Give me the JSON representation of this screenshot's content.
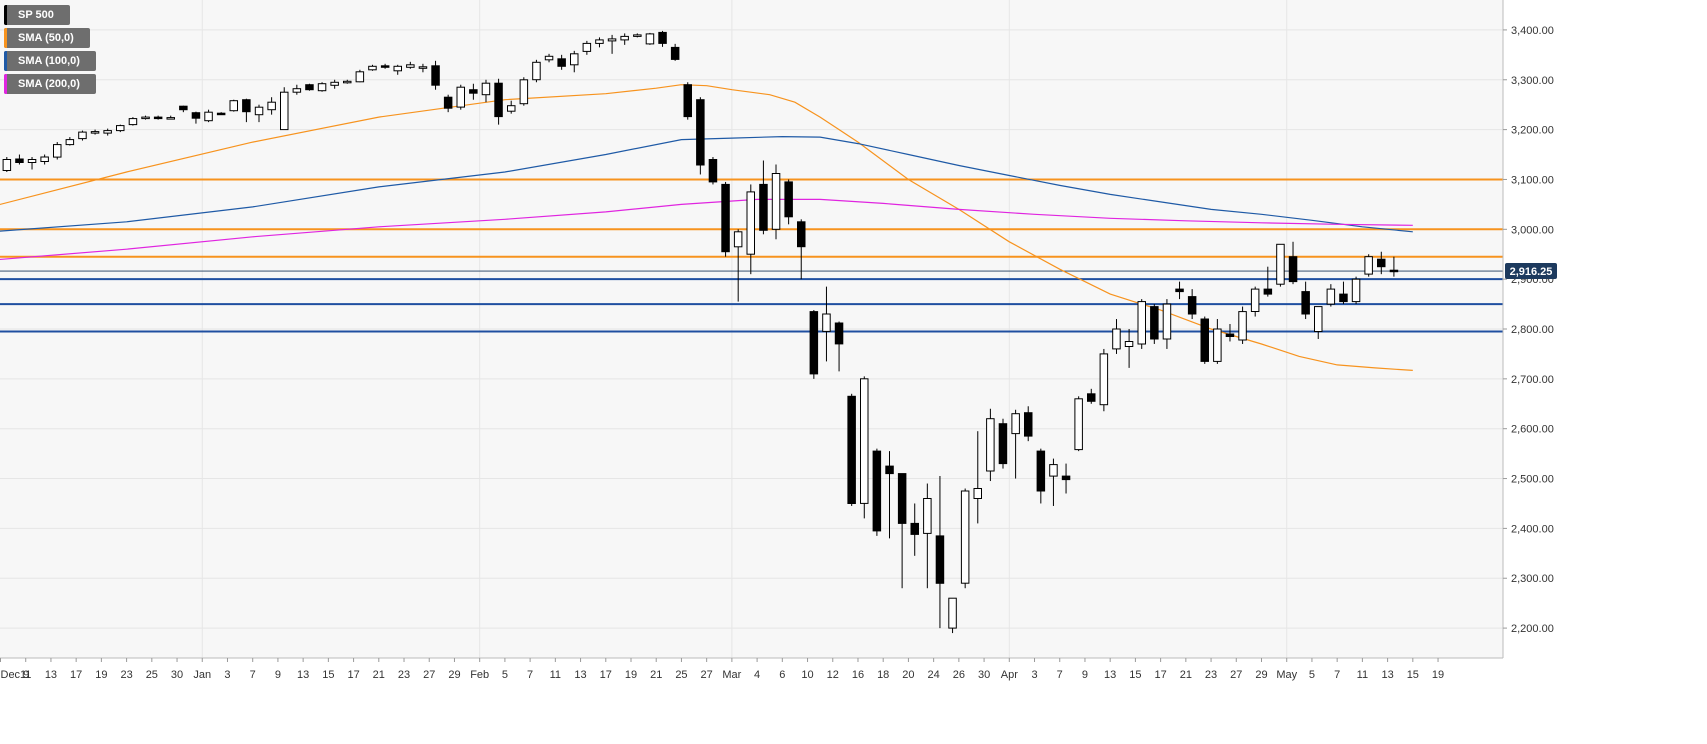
{
  "legend": [
    {
      "label": "SP 500",
      "color": "#000000"
    },
    {
      "label": "SMA (50,0)",
      "color": "#f7931e"
    },
    {
      "label": "SMA (100,0)",
      "color": "#1f5aa6"
    },
    {
      "label": "SMA (200,0)",
      "color": "#e025e0"
    }
  ],
  "colors": {
    "background": "#f7f7f7",
    "grid": "#e6e6e6",
    "bull_fill": "#ffffff",
    "bear_fill": "#000000",
    "candle_outline": "#000000",
    "resistance": "#f7931e",
    "support": "#1f4fa0",
    "sma50": "#f7931e",
    "sma100": "#1f5aa6",
    "sma200": "#e025e0",
    "price_tag": "#1d3a5e"
  },
  "chart_data": {
    "type": "candlestick",
    "title": "",
    "xlabel": "",
    "ylabel": "",
    "ylim": [
      2140,
      3460
    ],
    "grid": true,
    "legend_placement": "top-left",
    "y_ticks": [
      2200,
      2300,
      2400,
      2500,
      2600,
      2700,
      2800,
      2900,
      3000,
      3100,
      3200,
      3300,
      3400
    ],
    "y_tick_labels": [
      "2,200.00",
      "2,300.00",
      "2,400.00",
      "2,500.00",
      "2,600.00",
      "2,700.00",
      "2,800.00",
      "2,900.00",
      "3,000.00",
      "3,100.00",
      "3,200.00",
      "3,300.00",
      "3,400.00"
    ],
    "x_tick_labels": [
      "Dec 9",
      "11",
      "13",
      "17",
      "19",
      "23",
      "25",
      "30",
      "Jan",
      "3",
      "7",
      "9",
      "13",
      "15",
      "17",
      "21",
      "23",
      "27",
      "29",
      "Feb",
      "5",
      "7",
      "11",
      "13",
      "17",
      "19",
      "21",
      "25",
      "27",
      "Mar",
      "4",
      "6",
      "10",
      "12",
      "16",
      "18",
      "20",
      "24",
      "26",
      "30",
      "Apr",
      "3",
      "7",
      "9",
      "13",
      "15",
      "17",
      "21",
      "23",
      "27",
      "29",
      "May",
      "5",
      "7",
      "11",
      "13",
      "15",
      "19"
    ],
    "x_tick_slots": [
      0,
      2,
      4,
      6,
      8,
      10,
      12,
      14,
      16,
      18,
      20,
      22,
      24,
      26,
      28,
      30,
      32,
      34,
      36,
      38,
      40,
      42,
      44,
      46,
      48,
      50,
      52,
      54,
      56,
      58,
      60,
      62,
      64,
      66,
      68,
      70,
      72,
      74,
      76,
      78,
      80,
      82,
      84,
      86,
      88,
      90,
      92,
      94,
      96,
      98,
      100,
      102,
      104,
      106,
      108,
      110,
      112,
      114
    ],
    "vertical_grid_labels": [
      "Jan",
      "Feb",
      "Mar",
      "Apr",
      "May"
    ],
    "horizontal_levels": [
      {
        "value": 3100,
        "kind": "resistance"
      },
      {
        "value": 3000,
        "kind": "resistance"
      },
      {
        "value": 2945,
        "kind": "resistance"
      },
      {
        "value": 2900,
        "kind": "support"
      },
      {
        "value": 2850,
        "kind": "support"
      },
      {
        "value": 2795,
        "kind": "support"
      }
    ],
    "last_price": 2916.25,
    "last_price_label": "2,916.25",
    "candles": [
      {
        "x": -0.5,
        "o": 3112,
        "h": 3125,
        "l": 3100,
        "c": 3118
      },
      {
        "x": 0.5,
        "o": 3118,
        "h": 3145,
        "l": 3115,
        "c": 3140
      },
      {
        "x": 1.5,
        "o": 3141,
        "h": 3150,
        "l": 3130,
        "c": 3134
      },
      {
        "x": 2.5,
        "o": 3134,
        "h": 3145,
        "l": 3120,
        "c": 3140
      },
      {
        "x": 3.5,
        "o": 3136,
        "h": 3150,
        "l": 3130,
        "c": 3145
      },
      {
        "x": 4.5,
        "o": 3145,
        "h": 3175,
        "l": 3140,
        "c": 3170
      },
      {
        "x": 5.5,
        "o": 3170,
        "h": 3185,
        "l": 3168,
        "c": 3180
      },
      {
        "x": 6.5,
        "o": 3182,
        "h": 3198,
        "l": 3178,
        "c": 3195
      },
      {
        "x": 7.5,
        "o": 3195,
        "h": 3200,
        "l": 3190,
        "c": 3196
      },
      {
        "x": 8.5,
        "o": 3193,
        "h": 3202,
        "l": 3188,
        "c": 3198
      },
      {
        "x": 9.5,
        "o": 3198,
        "h": 3210,
        "l": 3195,
        "c": 3208
      },
      {
        "x": 10.5,
        "o": 3210,
        "h": 3225,
        "l": 3208,
        "c": 3222
      },
      {
        "x": 11.5,
        "o": 3223,
        "h": 3228,
        "l": 3220,
        "c": 3225
      },
      {
        "x": 12.5,
        "o": 3225,
        "h": 3228,
        "l": 3220,
        "c": 3223
      },
      {
        "x": 13.5,
        "o": 3222,
        "h": 3228,
        "l": 3221,
        "c": 3224
      },
      {
        "x": 14.5,
        "o": 3247,
        "h": 3248,
        "l": 3235,
        "c": 3240
      },
      {
        "x": 15.5,
        "o": 3234,
        "h": 3236,
        "l": 3212,
        "c": 3223
      },
      {
        "x": 16.5,
        "o": 3218,
        "h": 3240,
        "l": 3215,
        "c": 3235
      },
      {
        "x": 17.5,
        "o": 3233,
        "h": 3235,
        "l": 3230,
        "c": 3232
      },
      {
        "x": 18.5,
        "o": 3238,
        "h": 3260,
        "l": 3236,
        "c": 3258
      },
      {
        "x": 19.5,
        "o": 3260,
        "h": 3262,
        "l": 3215,
        "c": 3236
      },
      {
        "x": 20.5,
        "o": 3230,
        "h": 3250,
        "l": 3215,
        "c": 3245
      },
      {
        "x": 21.5,
        "o": 3240,
        "h": 3265,
        "l": 3230,
        "c": 3255
      },
      {
        "x": 22.5,
        "o": 3200,
        "h": 3285,
        "l": 3200,
        "c": 3275
      },
      {
        "x": 23.5,
        "o": 3275,
        "h": 3290,
        "l": 3270,
        "c": 3282
      },
      {
        "x": 24.5,
        "o": 3290,
        "h": 3292,
        "l": 3278,
        "c": 3280
      },
      {
        "x": 25.5,
        "o": 3278,
        "h": 3295,
        "l": 3276,
        "c": 3292
      },
      {
        "x": 26.5,
        "o": 3289,
        "h": 3300,
        "l": 3282,
        "c": 3295
      },
      {
        "x": 27.5,
        "o": 3296,
        "h": 3300,
        "l": 3292,
        "c": 3297
      },
      {
        "x": 28.5,
        "o": 3296,
        "h": 3320,
        "l": 3295,
        "c": 3316
      },
      {
        "x": 29.5,
        "o": 3320,
        "h": 3330,
        "l": 3318,
        "c": 3327
      },
      {
        "x": 30.5,
        "o": 3328,
        "h": 3332,
        "l": 3322,
        "c": 3326
      },
      {
        "x": 31.5,
        "o": 3318,
        "h": 3330,
        "l": 3310,
        "c": 3327
      },
      {
        "x": 32.5,
        "o": 3325,
        "h": 3336,
        "l": 3322,
        "c": 3330
      },
      {
        "x": 33.5,
        "o": 3325,
        "h": 3332,
        "l": 3315,
        "c": 3326
      },
      {
        "x": 34.5,
        "o": 3328,
        "h": 3338,
        "l": 3280,
        "c": 3289
      },
      {
        "x": 35.5,
        "o": 3265,
        "h": 3270,
        "l": 3235,
        "c": 3243
      },
      {
        "x": 36.5,
        "o": 3245,
        "h": 3290,
        "l": 3240,
        "c": 3285
      },
      {
        "x": 37.5,
        "o": 3280,
        "h": 3292,
        "l": 3260,
        "c": 3273
      },
      {
        "x": 38.5,
        "o": 3270,
        "h": 3300,
        "l": 3255,
        "c": 3293
      },
      {
        "x": 39.5,
        "o": 3293,
        "h": 3302,
        "l": 3210,
        "c": 3226
      },
      {
        "x": 40.5,
        "o": 3237,
        "h": 3258,
        "l": 3232,
        "c": 3248
      },
      {
        "x": 41.5,
        "o": 3252,
        "h": 3305,
        "l": 3248,
        "c": 3300
      },
      {
        "x": 42.5,
        "o": 3300,
        "h": 3340,
        "l": 3295,
        "c": 3335
      },
      {
        "x": 43.5,
        "o": 3340,
        "h": 3352,
        "l": 3335,
        "c": 3347
      },
      {
        "x": 44.5,
        "o": 3342,
        "h": 3350,
        "l": 3320,
        "c": 3327
      },
      {
        "x": 45.5,
        "o": 3330,
        "h": 3358,
        "l": 3315,
        "c": 3352
      },
      {
        "x": 46.5,
        "o": 3357,
        "h": 3378,
        "l": 3350,
        "c": 3373
      },
      {
        "x": 47.5,
        "o": 3373,
        "h": 3385,
        "l": 3365,
        "c": 3380
      },
      {
        "x": 48.5,
        "o": 3378,
        "h": 3390,
        "l": 3352,
        "c": 3382
      },
      {
        "x": 49.5,
        "o": 3380,
        "h": 3393,
        "l": 3370,
        "c": 3387
      },
      {
        "x": 50.5,
        "o": 3388,
        "h": 3393,
        "l": 3385,
        "c": 3390
      },
      {
        "x": 51.5,
        "o": 3372,
        "h": 3394,
        "l": 3370,
        "c": 3392
      },
      {
        "x": 52.5,
        "o": 3395,
        "h": 3398,
        "l": 3366,
        "c": 3373
      },
      {
        "x": 53.5,
        "o": 3365,
        "h": 3372,
        "l": 3338,
        "c": 3341
      },
      {
        "x": 54.5,
        "o": 3290,
        "h": 3295,
        "l": 3220,
        "c": 3226
      },
      {
        "x": 55.5,
        "o": 3260,
        "h": 3265,
        "l": 3110,
        "c": 3129
      },
      {
        "x": 56.5,
        "o": 3140,
        "h": 3145,
        "l": 3090,
        "c": 3095
      },
      {
        "x": 57.5,
        "o": 3090,
        "h": 3095,
        "l": 2945,
        "c": 2955
      },
      {
        "x": 58.5,
        "o": 2965,
        "h": 3000,
        "l": 2855,
        "c": 2995
      },
      {
        "x": 59.5,
        "o": 2950,
        "h": 3090,
        "l": 2910,
        "c": 3075
      },
      {
        "x": 60.5,
        "o": 3090,
        "h": 3138,
        "l": 2990,
        "c": 2998
      },
      {
        "x": 61.5,
        "o": 3000,
        "h": 3130,
        "l": 2980,
        "c": 3112
      },
      {
        "x": 62.5,
        "o": 3095,
        "h": 3100,
        "l": 3010,
        "c": 3025
      },
      {
        "x": 63.5,
        "o": 3015,
        "h": 3020,
        "l": 2900,
        "c": 2965
      },
      {
        "x": 64.5,
        "o": 2835,
        "h": 2838,
        "l": 2700,
        "c": 2710
      },
      {
        "x": 65.5,
        "o": 2795,
        "h": 2885,
        "l": 2735,
        "c": 2830
      },
      {
        "x": 66.5,
        "o": 2812,
        "h": 2815,
        "l": 2715,
        "c": 2770
      },
      {
        "x": 67.5,
        "o": 2665,
        "h": 2670,
        "l": 2445,
        "c": 2450
      },
      {
        "x": 68.5,
        "o": 2450,
        "h": 2705,
        "l": 2420,
        "c": 2700
      },
      {
        "x": 69.5,
        "o": 2555,
        "h": 2560,
        "l": 2385,
        "c": 2395
      },
      {
        "x": 70.5,
        "o": 2525,
        "h": 2555,
        "l": 2380,
        "c": 2510
      },
      {
        "x": 71.5,
        "o": 2510,
        "h": 2510,
        "l": 2280,
        "c": 2410
      },
      {
        "x": 72.5,
        "o": 2410,
        "h": 2450,
        "l": 2345,
        "c": 2388
      },
      {
        "x": 73.5,
        "o": 2390,
        "h": 2490,
        "l": 2280,
        "c": 2460
      },
      {
        "x": 74.5,
        "o": 2385,
        "h": 2505,
        "l": 2200,
        "c": 2290
      },
      {
        "x": 75.5,
        "o": 2200,
        "h": 2260,
        "l": 2190,
        "c": 2260
      },
      {
        "x": 76.5,
        "o": 2290,
        "h": 2480,
        "l": 2280,
        "c": 2475
      },
      {
        "x": 77.5,
        "o": 2460,
        "h": 2595,
        "l": 2410,
        "c": 2480
      },
      {
        "x": 78.5,
        "o": 2515,
        "h": 2640,
        "l": 2495,
        "c": 2620
      },
      {
        "x": 79.5,
        "o": 2610,
        "h": 2620,
        "l": 2520,
        "c": 2530
      },
      {
        "x": 80.5,
        "o": 2590,
        "h": 2638,
        "l": 2500,
        "c": 2630
      },
      {
        "x": 81.5,
        "o": 2632,
        "h": 2645,
        "l": 2575,
        "c": 2585
      },
      {
        "x": 82.5,
        "o": 2555,
        "h": 2560,
        "l": 2450,
        "c": 2475
      },
      {
        "x": 83.5,
        "o": 2505,
        "h": 2540,
        "l": 2445,
        "c": 2528
      },
      {
        "x": 84.5,
        "o": 2505,
        "h": 2530,
        "l": 2470,
        "c": 2498
      },
      {
        "x": 85.5,
        "o": 2558,
        "h": 2665,
        "l": 2555,
        "c": 2660
      },
      {
        "x": 86.5,
        "o": 2670,
        "h": 2680,
        "l": 2650,
        "c": 2655
      },
      {
        "x": 87.5,
        "o": 2648,
        "h": 2760,
        "l": 2635,
        "c": 2750
      },
      {
        "x": 88.5,
        "o": 2760,
        "h": 2820,
        "l": 2750,
        "c": 2800
      },
      {
        "x": 89.5,
        "o": 2765,
        "h": 2800,
        "l": 2722,
        "c": 2775
      },
      {
        "x": 90.5,
        "o": 2770,
        "h": 2860,
        "l": 2760,
        "c": 2855
      },
      {
        "x": 91.5,
        "o": 2845,
        "h": 2850,
        "l": 2770,
        "c": 2780
      },
      {
        "x": 92.5,
        "o": 2780,
        "h": 2860,
        "l": 2760,
        "c": 2850
      },
      {
        "x": 93.5,
        "o": 2880,
        "h": 2895,
        "l": 2860,
        "c": 2875
      },
      {
        "x": 94.5,
        "o": 2865,
        "h": 2880,
        "l": 2820,
        "c": 2830
      },
      {
        "x": 95.5,
        "o": 2820,
        "h": 2825,
        "l": 2730,
        "c": 2735
      },
      {
        "x": 96.5,
        "o": 2735,
        "h": 2820,
        "l": 2730,
        "c": 2800
      },
      {
        "x": 97.5,
        "o": 2790,
        "h": 2810,
        "l": 2775,
        "c": 2785
      },
      {
        "x": 98.5,
        "o": 2778,
        "h": 2845,
        "l": 2770,
        "c": 2835
      },
      {
        "x": 99.5,
        "o": 2835,
        "h": 2885,
        "l": 2825,
        "c": 2880
      },
      {
        "x": 100.5,
        "o": 2880,
        "h": 2925,
        "l": 2865,
        "c": 2870
      },
      {
        "x": 101.5,
        "o": 2890,
        "h": 2960,
        "l": 2885,
        "c": 2970
      },
      {
        "x": 102.5,
        "o": 2945,
        "h": 2975,
        "l": 2890,
        "c": 2895
      },
      {
        "x": 103.5,
        "o": 2875,
        "h": 2895,
        "l": 2820,
        "c": 2830
      },
      {
        "x": 104.5,
        "o": 2795,
        "h": 2845,
        "l": 2780,
        "c": 2845
      },
      {
        "x": 105.5,
        "o": 2850,
        "h": 2890,
        "l": 2845,
        "c": 2880
      },
      {
        "x": 106.5,
        "o": 2870,
        "h": 2895,
        "l": 2850,
        "c": 2855
      },
      {
        "x": 107.5,
        "o": 2855,
        "h": 2905,
        "l": 2850,
        "c": 2900
      },
      {
        "x": 108.5,
        "o": 2910,
        "h": 2950,
        "l": 2905,
        "c": 2945
      },
      {
        "x": 109.5,
        "o": 2940,
        "h": 2955,
        "l": 2910,
        "c": 2925
      },
      {
        "x": 110.5,
        "o": 2918,
        "h": 2945,
        "l": 2905,
        "c": 2916
      }
    ],
    "series": [
      {
        "name": "SMA (50,0)",
        "points": [
          [
            -0.8,
            3045
          ],
          [
            10,
            3115
          ],
          [
            20,
            3175
          ],
          [
            30,
            3225
          ],
          [
            40,
            3260
          ],
          [
            48,
            3272
          ],
          [
            52,
            3283
          ],
          [
            54,
            3290
          ],
          [
            56,
            3288
          ],
          [
            58,
            3280
          ],
          [
            61,
            3270
          ],
          [
            63,
            3255
          ],
          [
            65,
            3225
          ],
          [
            68,
            3175
          ],
          [
            72,
            3100
          ],
          [
            76,
            3040
          ],
          [
            80,
            2975
          ],
          [
            84,
            2920
          ],
          [
            88,
            2870
          ],
          [
            92,
            2838
          ],
          [
            96,
            2800
          ],
          [
            100,
            2770
          ],
          [
            103,
            2745
          ],
          [
            106,
            2728
          ],
          [
            109,
            2722
          ],
          [
            112,
            2717
          ]
        ]
      },
      {
        "name": "SMA (100,0)",
        "points": [
          [
            -0.8,
            2995
          ],
          [
            10,
            3015
          ],
          [
            20,
            3045
          ],
          [
            30,
            3085
          ],
          [
            40,
            3115
          ],
          [
            48,
            3150
          ],
          [
            54,
            3180
          ],
          [
            58,
            3183
          ],
          [
            62,
            3186
          ],
          [
            65,
            3185
          ],
          [
            68,
            3172
          ],
          [
            72,
            3150
          ],
          [
            76,
            3128
          ],
          [
            80,
            3108
          ],
          [
            84,
            3088
          ],
          [
            88,
            3070
          ],
          [
            92,
            3055
          ],
          [
            96,
            3040
          ],
          [
            100,
            3030
          ],
          [
            104,
            3018
          ],
          [
            108,
            3005
          ],
          [
            112,
            2995
          ]
        ]
      },
      {
        "name": "SMA (200,0)",
        "points": [
          [
            -0.8,
            2938
          ],
          [
            10,
            2960
          ],
          [
            20,
            2985
          ],
          [
            30,
            3005
          ],
          [
            40,
            3020
          ],
          [
            48,
            3035
          ],
          [
            54,
            3050
          ],
          [
            60,
            3060
          ],
          [
            65,
            3060
          ],
          [
            70,
            3052
          ],
          [
            76,
            3040
          ],
          [
            82,
            3030
          ],
          [
            88,
            3022
          ],
          [
            94,
            3017
          ],
          [
            100,
            3013
          ],
          [
            106,
            3010
          ],
          [
            112,
            3008
          ]
        ]
      }
    ]
  }
}
